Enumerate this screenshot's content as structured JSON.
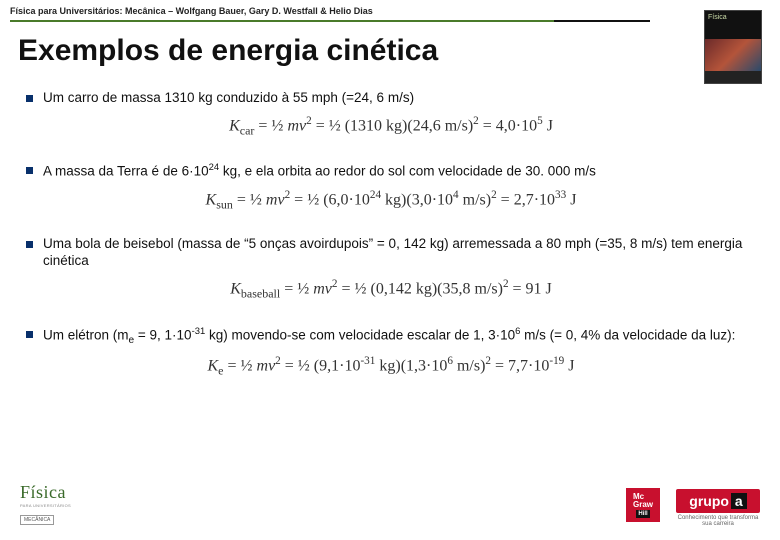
{
  "header": {
    "citation": "Física para Universitários: Mecânica – Wolfgang Bauer, Gary D. Westfall & Helio Dias"
  },
  "title": "Exemplos de energia cinética",
  "bullets": [
    {
      "text": "Um carro de massa 1310 kg conduzido à 55 mph (=24, 6 m/s)",
      "eq": "<i>K</i><sub>car</sub> = ½ <i>mv</i><sup>2</sup> = ½ (1310 kg)(24,6 m/s)<sup>2</sup> = 4,0·10<sup>5</sup> J"
    },
    {
      "text": "A massa da Terra é de 6·10<sup>24</sup> kg, e ela orbita ao redor do sol com velocidade de 30. 000 m/s",
      "eq": "<i>K</i><sub>sun</sub> = ½ <i>mv</i><sup>2</sup> = ½ (6,0·10<sup>24</sup> kg)(3,0·10<sup>4</sup> m/s)<sup>2</sup> = 2,7·10<sup>33</sup> J"
    },
    {
      "text": "Uma bola de beisebol (massa de “5 onças avoirdupois” = 0, 142 kg) arremessada a 80 mph (=35, 8 m/s) tem energia cinética",
      "eq": "<i>K</i><sub>baseball</sub> = ½ <i>mv</i><sup>2</sup> = ½ (0,142 kg)(35,8 m/s)<sup>2</sup> = 91 J"
    },
    {
      "text": "Um elétron (m<sub>e</sub> = 9, 1·10<sup>-31</sup> kg) movendo-se com velocidade escalar de 1, 3·10<sup>6</sup> m/s (= 0, 4% da velocidade da luz):",
      "eq": "<i>K</i><sub>e</sub> = ½ <i>mv</i><sup>2</sup> = ½ (9,1·10<sup>-31</sup> kg)(1,3·10<sup>6</sup> m/s)<sup>2</sup> = 7,7·10<sup>-19</sup> J"
    }
  ],
  "footer": {
    "fisica": {
      "word": "Física",
      "sub": "PARA UNIVERSITÁRIOS",
      "box": "MECÂNICA"
    },
    "mcgraw": {
      "top": "Mc\nGraw",
      "bottom": "Hill"
    },
    "grupoa": {
      "label": "grupo",
      "a": "a",
      "tag": "Conhecimento que transforma sua carreira"
    }
  },
  "style": {
    "accent": "#08306b",
    "rule_green": "#4a7b2a",
    "rule_dark": "#111",
    "title_fontsize": 30,
    "body_fontsize": 13.5,
    "eq_fontsize": 16,
    "red": "#c8102e",
    "bg": "#ffffff"
  }
}
